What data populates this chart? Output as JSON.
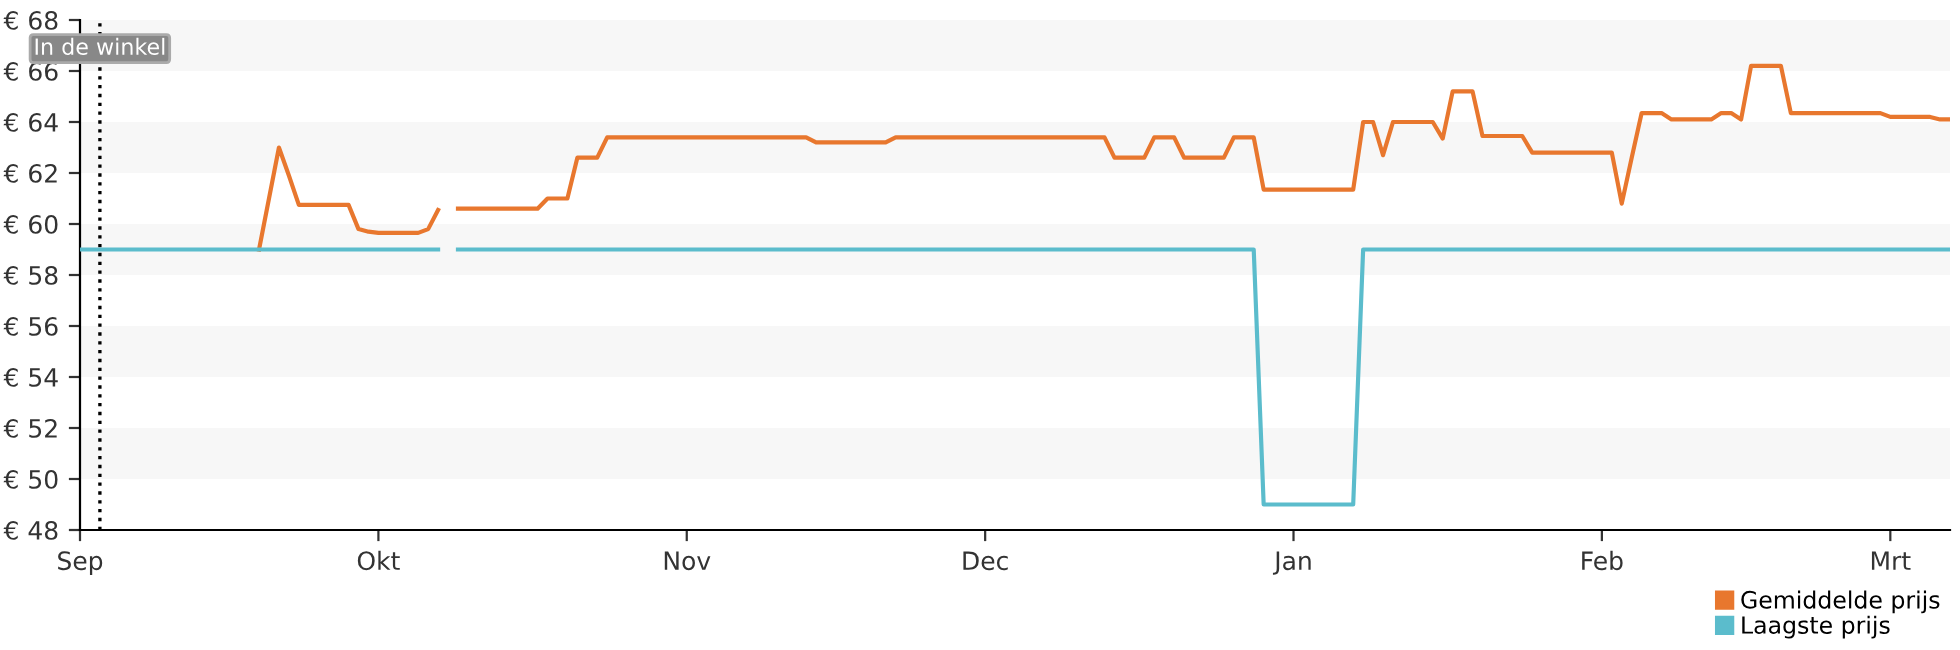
{
  "chart_data": {
    "type": "line",
    "categories": [
      "Sep",
      null,
      null,
      null,
      null,
      null,
      null,
      null,
      null,
      null,
      null,
      null,
      null,
      null,
      null,
      null,
      null,
      null,
      null,
      null,
      null,
      null,
      null,
      null,
      null,
      null,
      null,
      null,
      null,
      null,
      "Okt",
      null,
      null,
      null,
      null,
      null,
      null,
      null,
      null,
      null,
      null,
      null,
      null,
      null,
      null,
      null,
      null,
      null,
      null,
      null,
      null,
      null,
      null,
      null,
      null,
      null,
      null,
      null,
      null,
      null,
      null,
      "Nov",
      null,
      null,
      null,
      null,
      null,
      null,
      null,
      null,
      null,
      null,
      null,
      null,
      null,
      null,
      null,
      null,
      null,
      null,
      null,
      null,
      null,
      null,
      null,
      null,
      null,
      null,
      null,
      null,
      null,
      "Dec",
      null,
      null,
      null,
      null,
      null,
      null,
      null,
      null,
      null,
      null,
      null,
      null,
      null,
      null,
      null,
      null,
      null,
      null,
      null,
      null,
      null,
      null,
      null,
      null,
      null,
      null,
      null,
      null,
      null,
      null,
      "Jan",
      null,
      null,
      null,
      null,
      null,
      null,
      null,
      null,
      null,
      null,
      null,
      null,
      null,
      null,
      null,
      null,
      null,
      null,
      null,
      null,
      null,
      null,
      null,
      null,
      null,
      null,
      null,
      null,
      null,
      null,
      "Feb",
      null,
      null,
      null,
      null,
      null,
      null,
      null,
      null,
      null,
      null,
      null,
      null,
      null,
      null,
      null,
      null,
      null,
      null,
      null,
      null,
      null,
      null,
      null,
      null,
      null,
      null,
      null,
      null,
      "Mrt",
      null,
      null,
      null,
      null,
      null,
      null
    ],
    "ylim": [
      48,
      68
    ],
    "yticks": [
      {
        "value": 48,
        "label": "€ 48"
      },
      {
        "value": 50,
        "label": "€ 50"
      },
      {
        "value": 52,
        "label": "€ 52"
      },
      {
        "value": 54,
        "label": "€ 54"
      },
      {
        "value": 56,
        "label": "€ 56"
      },
      {
        "value": 58,
        "label": "€ 58"
      },
      {
        "value": 60,
        "label": "€ 60"
      },
      {
        "value": 62,
        "label": "€ 62"
      },
      {
        "value": 64,
        "label": "€ 64"
      },
      {
        "value": 66,
        "label": "€ 66"
      },
      {
        "value": 68,
        "label": "€ 68"
      }
    ],
    "legend": "bottom right",
    "marker": "none",
    "line_style": "solid",
    "annotations": [
      "In de winkel"
    ],
    "series": [
      {
        "name": "Gemiddelde prijs",
        "color": "#e8772e",
        "values": [
          null,
          null,
          null,
          null,
          null,
          null,
          null,
          null,
          null,
          null,
          null,
          null,
          null,
          null,
          null,
          null,
          null,
          null,
          59.0,
          61.0,
          63.0,
          61.9,
          60.75,
          60.75,
          60.75,
          60.75,
          60.75,
          60.75,
          59.8,
          59.7,
          59.65,
          59.65,
          59.65,
          59.65,
          59.65,
          59.8,
          60.55,
          null,
          60.6,
          60.6,
          60.6,
          60.6,
          60.6,
          60.6,
          60.6,
          60.6,
          60.6,
          61.0,
          61.0,
          61.0,
          62.6,
          62.6,
          62.6,
          63.4,
          63.4,
          63.4,
          63.4,
          63.4,
          63.4,
          63.4,
          63.4,
          63.4,
          63.4,
          63.4,
          63.4,
          63.4,
          63.4,
          63.4,
          63.4,
          63.4,
          63.4,
          63.4,
          63.4,
          63.4,
          63.2,
          63.2,
          63.2,
          63.2,
          63.2,
          63.2,
          63.2,
          63.2,
          63.4,
          63.4,
          63.4,
          63.4,
          63.4,
          63.4,
          63.4,
          63.4,
          63.4,
          63.4,
          63.4,
          63.4,
          63.4,
          63.4,
          63.4,
          63.4,
          63.4,
          63.4,
          63.4,
          63.4,
          63.4,
          63.4,
          62.6,
          62.6,
          62.6,
          62.6,
          63.4,
          63.4,
          63.4,
          62.6,
          62.6,
          62.6,
          62.6,
          62.6,
          63.4,
          63.4,
          63.4,
          61.35,
          61.35,
          61.35,
          61.35,
          61.35,
          61.35,
          61.35,
          61.35,
          61.35,
          61.35,
          64.0,
          64.0,
          62.7,
          64.0,
          64.0,
          64.0,
          64.0,
          64.0,
          63.35,
          65.2,
          65.2,
          65.2,
          63.45,
          63.45,
          63.45,
          63.45,
          63.45,
          62.8,
          62.8,
          62.8,
          62.8,
          62.8,
          62.8,
          62.8,
          62.8,
          62.8,
          60.8,
          62.6,
          64.35,
          64.35,
          64.35,
          64.1,
          64.1,
          64.1,
          64.1,
          64.1,
          64.35,
          64.35,
          64.1,
          66.2,
          66.2,
          66.2,
          66.2,
          64.35,
          64.35,
          64.35,
          64.35,
          64.35,
          64.35,
          64.35,
          64.35,
          64.35,
          64.35,
          64.2,
          64.2,
          64.2,
          64.2,
          64.2,
          64.1,
          64.1
        ]
      },
      {
        "name": "Laagste prijs",
        "color": "#5bbccc",
        "values": [
          59.0,
          59.0,
          59.0,
          59.0,
          59.0,
          59.0,
          59.0,
          59.0,
          59.0,
          59.0,
          59.0,
          59.0,
          59.0,
          59.0,
          59.0,
          59.0,
          59.0,
          59.0,
          59.0,
          59.0,
          59.0,
          59.0,
          59.0,
          59.0,
          59.0,
          59.0,
          59.0,
          59.0,
          59.0,
          59.0,
          59.0,
          59.0,
          59.0,
          59.0,
          59.0,
          59.0,
          59.0,
          null,
          59.0,
          59.0,
          59.0,
          59.0,
          59.0,
          59.0,
          59.0,
          59.0,
          59.0,
          59.0,
          59.0,
          59.0,
          59.0,
          59.0,
          59.0,
          59.0,
          59.0,
          59.0,
          59.0,
          59.0,
          59.0,
          59.0,
          59.0,
          59.0,
          59.0,
          59.0,
          59.0,
          59.0,
          59.0,
          59.0,
          59.0,
          59.0,
          59.0,
          59.0,
          59.0,
          59.0,
          59.0,
          59.0,
          59.0,
          59.0,
          59.0,
          59.0,
          59.0,
          59.0,
          59.0,
          59.0,
          59.0,
          59.0,
          59.0,
          59.0,
          59.0,
          59.0,
          59.0,
          59.0,
          59.0,
          59.0,
          59.0,
          59.0,
          59.0,
          59.0,
          59.0,
          59.0,
          59.0,
          59.0,
          59.0,
          59.0,
          59.0,
          59.0,
          59.0,
          59.0,
          59.0,
          59.0,
          59.0,
          59.0,
          59.0,
          59.0,
          59.0,
          59.0,
          59.0,
          59.0,
          59.0,
          49.0,
          49.0,
          49.0,
          49.0,
          49.0,
          49.0,
          49.0,
          49.0,
          49.0,
          49.0,
          59.0,
          59.0,
          59.0,
          59.0,
          59.0,
          59.0,
          59.0,
          59.0,
          59.0,
          59.0,
          59.0,
          59.0,
          59.0,
          59.0,
          59.0,
          59.0,
          59.0,
          59.0,
          59.0,
          59.0,
          59.0,
          59.0,
          59.0,
          59.0,
          59.0,
          59.0,
          59.0,
          59.0,
          59.0,
          59.0,
          59.0,
          59.0,
          59.0,
          59.0,
          59.0,
          59.0,
          59.0,
          59.0,
          59.0,
          59.0,
          59.0,
          59.0,
          59.0,
          59.0,
          59.0,
          59.0,
          59.0,
          59.0,
          59.0,
          59.0,
          59.0,
          59.0,
          59.0,
          59.0,
          59.0,
          59.0,
          59.0,
          59.0,
          59.0,
          59.0
        ]
      }
    ]
  }
}
